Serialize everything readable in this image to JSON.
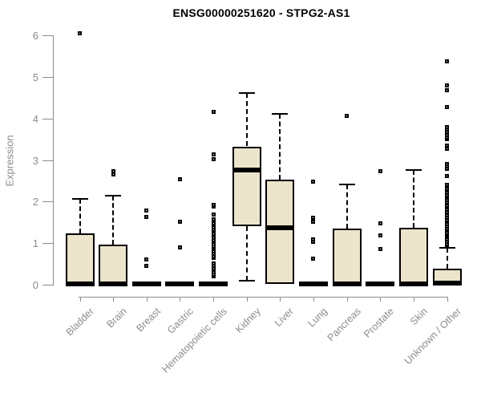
{
  "title": "ENSG00000251620 - STPG2-AS1",
  "colors": {
    "box_fill": "#ECE5CB",
    "box_stroke": "#000000",
    "axis": "#8C8C8C",
    "title_text": "#000000",
    "background": "#FFFFFF"
  },
  "chart_data": {
    "type": "boxplot",
    "title": "ENSG00000251620 - STPG2-AS1",
    "xlabel": "",
    "ylabel": "Expression",
    "ylim": [
      0,
      6
    ],
    "yticks": [
      0,
      1,
      2,
      3,
      4,
      5,
      6
    ],
    "grid": false,
    "legend": false,
    "categories": [
      "Bladder",
      "Brain",
      "Breast",
      "Gastric",
      "Hematopoietic cells",
      "Kidney",
      "Liver",
      "Lung",
      "Pancreas",
      "Prostate",
      "Skin",
      "Unknown / Other"
    ],
    "series": [
      {
        "category": "Bladder",
        "q1": 0,
        "median": 0.02,
        "q3": 1.23,
        "whisker_low": null,
        "whisker_high": 2.06,
        "outliers": [
          6.05
        ]
      },
      {
        "category": "Brain",
        "q1": 0,
        "median": 0.02,
        "q3": 0.97,
        "whisker_low": null,
        "whisker_high": 2.14,
        "outliers": [
          2.66,
          2.74
        ]
      },
      {
        "category": "Breast",
        "q1": 0,
        "median": 0.02,
        "q3": 0.02,
        "whisker_low": null,
        "whisker_high": null,
        "outliers": [
          0.45,
          0.61,
          1.64,
          1.78
        ]
      },
      {
        "category": "Gastric",
        "q1": 0,
        "median": 0.02,
        "q3": 0.02,
        "whisker_low": null,
        "whisker_high": null,
        "outliers": [
          0.9,
          1.52,
          2.53
        ]
      },
      {
        "category": "Hematopoietic cells",
        "q1": 0,
        "median": 0.02,
        "q3": 0.02,
        "whisker_low": null,
        "whisker_high": null,
        "outliers": [
          0.2,
          0.25,
          0.3,
          0.35,
          0.4,
          0.45,
          0.51,
          0.64,
          0.69,
          0.75,
          0.81,
          0.87,
          0.92,
          0.97,
          1.03,
          1.08,
          1.13,
          1.18,
          1.23,
          1.28,
          1.33,
          1.38,
          1.43,
          1.48,
          1.53,
          1.58,
          1.69,
          1.88,
          1.92,
          3.02,
          3.13,
          4.16
        ]
      },
      {
        "category": "Kidney",
        "q1": 1.4,
        "median": 2.77,
        "q3": 3.33,
        "whisker_low": 0.1,
        "whisker_high": 4.61,
        "outliers": []
      },
      {
        "category": "Liver",
        "q1": 0.01,
        "median": 1.38,
        "q3": 2.52,
        "whisker_low": null,
        "whisker_high": 4.12,
        "outliers": []
      },
      {
        "category": "Lung",
        "q1": 0,
        "median": 0.02,
        "q3": 0.02,
        "whisker_low": null,
        "whisker_high": null,
        "outliers": [
          0.62,
          1.03,
          1.09,
          1.52,
          1.61,
          2.49
        ]
      },
      {
        "category": "Pancreas",
        "q1": 0,
        "median": 0.02,
        "q3": 1.35,
        "whisker_low": null,
        "whisker_high": 2.41,
        "outliers": [
          4.07
        ]
      },
      {
        "category": "Prostate",
        "q1": 0,
        "median": 0.02,
        "q3": 0.02,
        "whisker_low": null,
        "whisker_high": null,
        "outliers": [
          0.85,
          1.19,
          1.48,
          2.73
        ]
      },
      {
        "category": "Skin",
        "q1": 0,
        "median": 0.02,
        "q3": 1.37,
        "whisker_low": null,
        "whisker_high": 2.76,
        "outliers": []
      },
      {
        "category": "Unknown / Other",
        "q1": 0,
        "median": 0.03,
        "q3": 0.39,
        "whisker_low": null,
        "whisker_high": 0.88,
        "outliers": [
          0.93,
          0.98,
          1.04,
          1.09,
          1.16,
          1.2,
          1.25,
          1.3,
          1.35,
          1.4,
          1.45,
          1.51,
          1.56,
          1.61,
          1.67,
          1.75,
          1.8,
          1.9,
          1.97,
          2.03,
          2.11,
          2.16,
          2.21,
          2.26,
          2.31,
          2.36,
          2.41,
          2.61,
          2.79,
          2.84,
          2.9,
          3.28,
          3.34,
          3.5,
          3.55,
          3.61,
          3.67,
          3.73,
          3.79,
          4.28,
          4.68,
          4.79,
          5.37
        ]
      }
    ]
  }
}
